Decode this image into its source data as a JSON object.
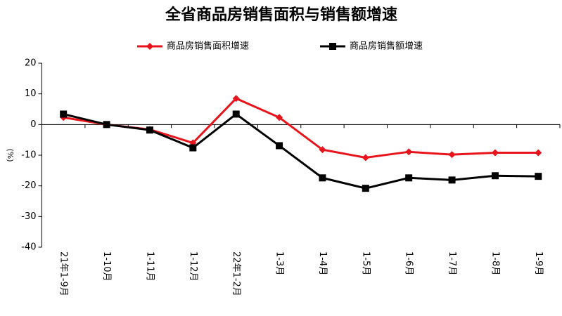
{
  "chart_data": {
    "type": "line",
    "title": "全省商品房销售面积与销售额增速",
    "y_label": "(%)",
    "categories": [
      "21年1-9月",
      "1-10月",
      "1-11月",
      "1-12月",
      "22年1-2月",
      "1-3月",
      "1-4月",
      "1-5月",
      "1-6月",
      "1-7月",
      "1-8月",
      "1-9月"
    ],
    "series": [
      {
        "name": "商品房销售面积增速",
        "color": "#e8141b",
        "marker": "diamond",
        "values": [
          2.3,
          0,
          -1.6,
          -6,
          8.5,
          2.3,
          -8.2,
          -10.8,
          -8.9,
          -9.8,
          -9.2,
          -9.2
        ]
      },
      {
        "name": "商品房销售额增速",
        "color": "#000000",
        "marker": "square",
        "values": [
          3.4,
          0,
          -1.8,
          -7.6,
          3.4,
          -6.9,
          -17.4,
          -20.8,
          -17.4,
          -18.1,
          -16.7,
          -16.9
        ]
      }
    ],
    "ylim": [
      -40,
      20
    ],
    "yticks": [
      -40,
      -30,
      -20,
      -10,
      0,
      10,
      20
    ],
    "grid": false,
    "legend": "top"
  }
}
